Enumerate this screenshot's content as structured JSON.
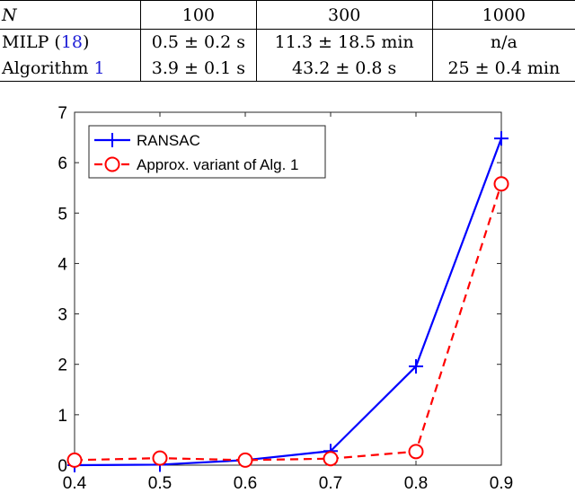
{
  "table": {
    "header": [
      "N",
      "100",
      "300",
      "1000"
    ],
    "rows": [
      {
        "method": "MILP",
        "ref": "18",
        "values": [
          "0.5 ± 0.2 s",
          "11.3 ± 18.5 min",
          "n/a"
        ]
      },
      {
        "method": "Algorithm",
        "ref": "1",
        "values": [
          "3.9 ± 0.1 s",
          "43.2 ± 0.8 s",
          "25 ± 0.4 min"
        ]
      }
    ]
  },
  "chart_data": {
    "type": "line",
    "x": [
      0.4,
      0.5,
      0.6,
      0.7,
      0.8,
      0.9
    ],
    "xlim": [
      0.4,
      0.9
    ],
    "ylim": [
      0,
      7
    ],
    "xticks": [
      "0.4",
      "0.5",
      "0.6",
      "0.7",
      "0.8",
      "0.9"
    ],
    "yticks": [
      "0",
      "1",
      "2",
      "3",
      "4",
      "5",
      "6",
      "7"
    ],
    "grid": false,
    "legend_position": "top-left",
    "series": [
      {
        "name": "RANSAC",
        "values": [
          0.0,
          0.01,
          0.1,
          0.28,
          1.96,
          6.48
        ],
        "color": "#0000ff",
        "dash": "solid",
        "marker": "plus"
      },
      {
        "name": "Approx. variant of Alg. 1",
        "values": [
          0.1,
          0.14,
          0.1,
          0.13,
          0.27,
          5.58
        ],
        "color": "#ff0000",
        "dash": "dashed",
        "marker": "circle"
      }
    ]
  }
}
